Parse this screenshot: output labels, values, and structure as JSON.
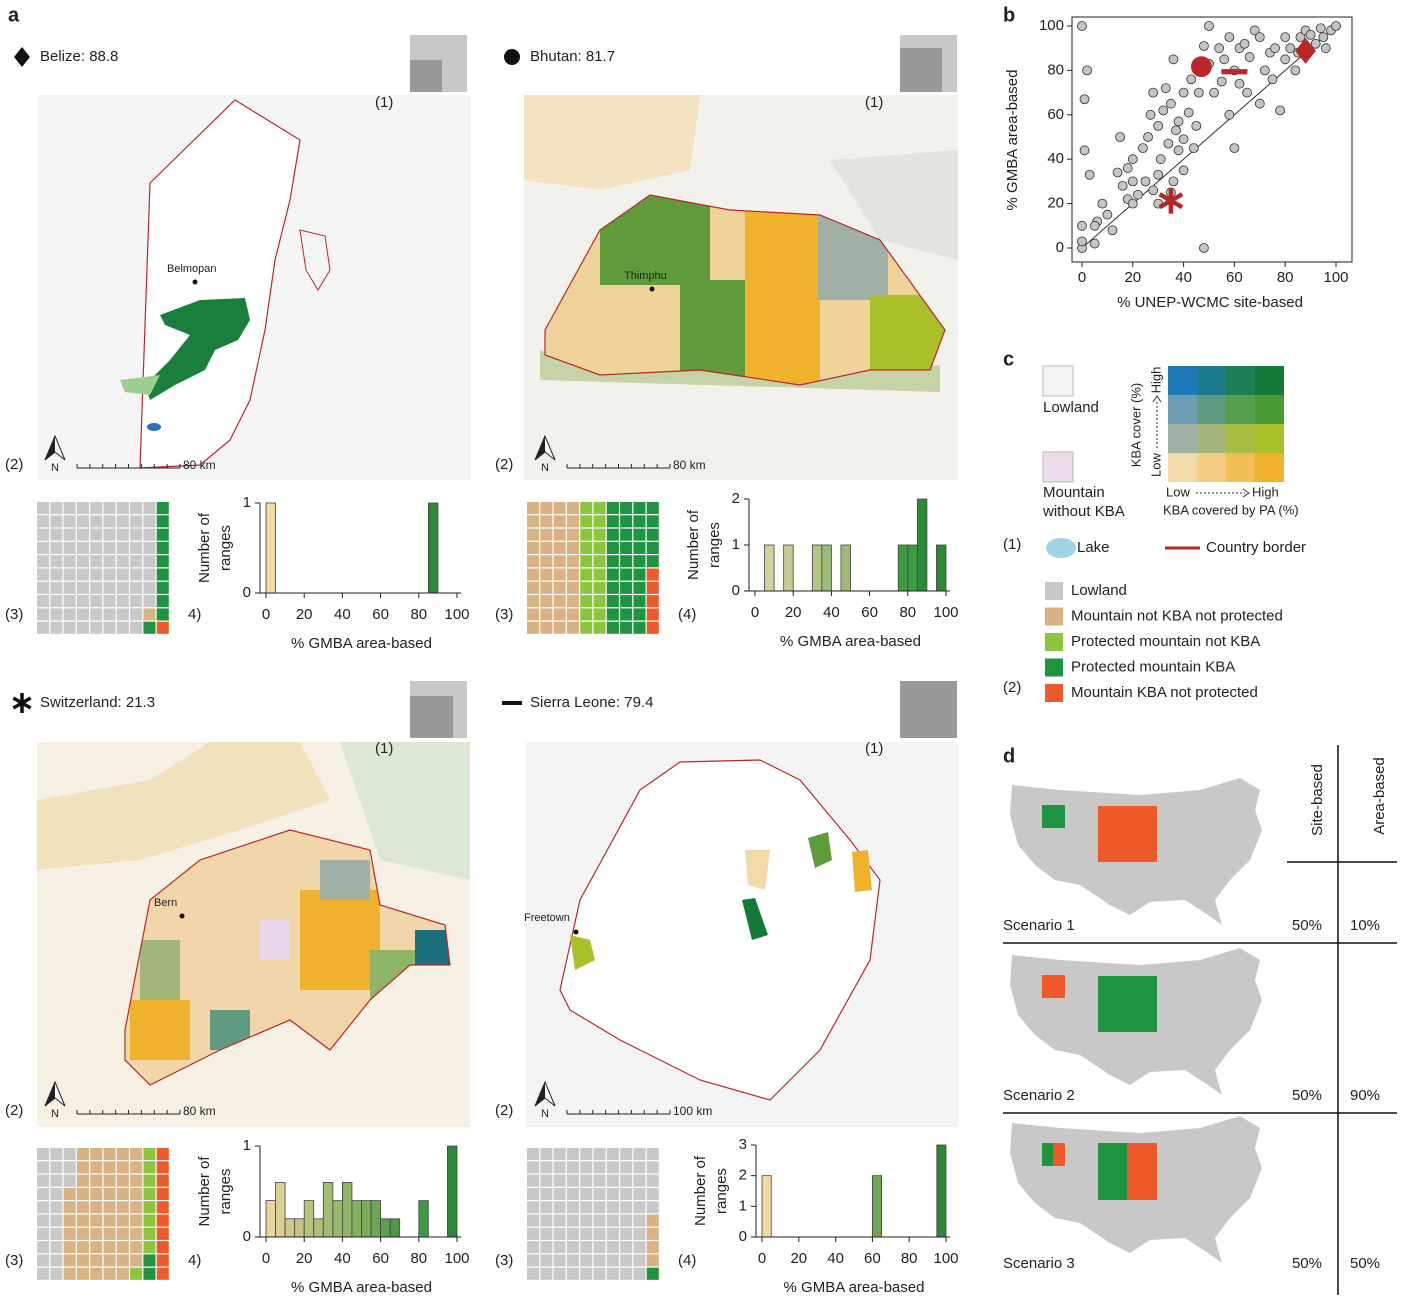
{
  "panel_labels": [
    "a",
    "b",
    "c",
    "d"
  ],
  "countries": [
    {
      "title": "Belize: 88.8",
      "city": "Belmopan",
      "scale": "80 km",
      "north": "N",
      "labels": [
        "(1)",
        "(2)",
        "(3)",
        "4)"
      ],
      "waffle": [
        88,
        1,
        0,
        10,
        1
      ]
    },
    {
      "title": "Bhutan: 81.7",
      "city": "Thimphu",
      "scale": "80 km",
      "north": "N",
      "labels": [
        "(1)",
        "(2)",
        "(3)",
        "(4)"
      ],
      "waffle": [
        0,
        40,
        20,
        35,
        5
      ]
    },
    {
      "title": "Switzerland: 21.3",
      "city": "Bern",
      "scale": "80 km",
      "north": "N",
      "labels": [
        "(1)",
        "(2)",
        "(3)",
        "4)"
      ],
      "waffle": [
        23,
        56,
        9,
        2,
        10
      ]
    },
    {
      "title": "Sierra Leone: 79.4",
      "city": "Freetown",
      "scale": "100 km",
      "north": "N",
      "labels": [
        "(1)",
        "(2)",
        "(3)",
        "(4)"
      ],
      "waffle": [
        95,
        4,
        0,
        1,
        0
      ]
    }
  ],
  "chart_data": [
    {
      "type": "histogram",
      "xlabel": "% GMBA area-based",
      "ylabel": [
        "Number of",
        "ranges"
      ],
      "bins": [
        0,
        5,
        10,
        15,
        20,
        25,
        30,
        35,
        40,
        45,
        50,
        55,
        60,
        65,
        70,
        75,
        80,
        85,
        90,
        95,
        100
      ],
      "counts": [
        1,
        0,
        0,
        0,
        0,
        0,
        0,
        0,
        0,
        0,
        0,
        0,
        0,
        0,
        0,
        0,
        0,
        1,
        0,
        0
      ],
      "colors": [
        "#f3d9a4",
        null,
        null,
        null,
        null,
        null,
        null,
        null,
        null,
        null,
        null,
        null,
        null,
        null,
        null,
        null,
        null,
        "#2a8a36",
        null,
        null
      ],
      "xlim": [
        0,
        100
      ],
      "xticks": [
        0,
        20,
        40,
        60,
        80,
        100
      ],
      "ylim": [
        0,
        1
      ],
      "yticks": [
        0,
        1
      ]
    },
    {
      "type": "histogram",
      "xlabel": "% GMBA area-based",
      "ylabel": [
        "Number of",
        "ranges"
      ],
      "bins": [
        0,
        5,
        10,
        15,
        20,
        25,
        30,
        35,
        40,
        45,
        50,
        55,
        60,
        65,
        70,
        75,
        80,
        85,
        90,
        95,
        100
      ],
      "counts": [
        0,
        1,
        0,
        1,
        0,
        0,
        1,
        1,
        0,
        1,
        0,
        0,
        0,
        0,
        0,
        1,
        1,
        2,
        0,
        1
      ],
      "colors": [
        null,
        "#d5d09a",
        null,
        "#c9c890",
        null,
        null,
        "#b2c486",
        "#9dbb76",
        null,
        "#9dbb76",
        null,
        null,
        null,
        null,
        null,
        "#3f9a44",
        "#3f9a44",
        "#2a8a36",
        null,
        "#2a8a36"
      ],
      "xlim": [
        0,
        100
      ],
      "xticks": [
        0,
        20,
        40,
        60,
        80,
        100
      ],
      "ylim": [
        0,
        2
      ],
      "yticks": [
        0,
        1,
        2
      ]
    },
    {
      "type": "histogram",
      "xlabel": "% GMBA area-based",
      "ylabel": [
        "Number of",
        "ranges"
      ],
      "bins": [
        0,
        5,
        10,
        15,
        20,
        25,
        30,
        35,
        40,
        45,
        50,
        55,
        60,
        65,
        70,
        75,
        80,
        85,
        90,
        95,
        100
      ],
      "counts": [
        0.4,
        0.6,
        0.2,
        0.2,
        0.4,
        0.2,
        0.6,
        0.4,
        0.6,
        0.4,
        0.4,
        0.4,
        0.2,
        0.2,
        0,
        0,
        0.4,
        0,
        0,
        1
      ],
      "colors": [
        "#e6d49a",
        "#d9cf92",
        "#ccc98a",
        "#c2c585",
        "#b8c27f",
        "#adbf79",
        "#a3bc73",
        "#99b86d",
        "#8fb467",
        "#85b061",
        "#7aab5b",
        "#6fa655",
        "#5f9f50",
        "#4f984a",
        null,
        null,
        "#3f9a44",
        null,
        null,
        "#2a8a36"
      ],
      "xlim": [
        0,
        100
      ],
      "xticks": [
        0,
        20,
        40,
        60,
        80,
        100
      ],
      "ylim": [
        0,
        1
      ],
      "yticks": [
        0,
        1
      ]
    },
    {
      "type": "histogram",
      "xlabel": "% GMBA area-based",
      "ylabel": [
        "Number of",
        "ranges"
      ],
      "bins": [
        0,
        5,
        10,
        15,
        20,
        25,
        30,
        35,
        40,
        45,
        50,
        55,
        60,
        65,
        70,
        75,
        80,
        85,
        90,
        95,
        100
      ],
      "counts": [
        2,
        0,
        0,
        0,
        0,
        0,
        0,
        0,
        0,
        0,
        0,
        0,
        2,
        0,
        0,
        0,
        0,
        0,
        0,
        3
      ],
      "colors": [
        "#f3d9a4",
        null,
        null,
        null,
        null,
        null,
        null,
        null,
        null,
        null,
        null,
        null,
        "#6fa655",
        null,
        null,
        null,
        null,
        null,
        null,
        "#2a8a36"
      ],
      "xlim": [
        0,
        100
      ],
      "xticks": [
        0,
        20,
        40,
        60,
        80,
        100
      ],
      "ylim": [
        0,
        3
      ],
      "yticks": [
        0,
        1,
        2,
        3
      ]
    },
    {
      "type": "scatter",
      "xlabel": "% UNEP-WCMC site-based",
      "ylabel": "% GMBA area-based",
      "color": "#c4c4c4",
      "x": [
        0,
        0,
        0,
        1,
        1,
        2,
        0,
        3,
        5,
        6,
        8,
        10,
        12,
        14,
        15,
        16,
        18,
        18,
        20,
        20,
        22,
        24,
        25,
        26,
        27,
        28,
        28,
        30,
        30,
        31,
        32,
        33,
        34,
        35,
        35,
        36,
        36,
        37,
        38,
        38,
        40,
        40,
        42,
        43,
        44,
        45,
        46,
        48,
        50,
        50,
        52,
        54,
        55,
        56,
        58,
        58,
        60,
        62,
        62,
        64,
        65,
        66,
        68,
        70,
        70,
        72,
        74,
        75,
        76,
        78,
        80,
        80,
        82,
        84,
        85,
        86,
        88,
        90,
        92,
        94,
        95,
        96,
        98,
        100,
        48,
        5,
        30,
        60,
        40,
        20
      ],
      "y": [
        0,
        3,
        100,
        44,
        67,
        80,
        10,
        33,
        2,
        12,
        20,
        15,
        8,
        34,
        50,
        28,
        22,
        36,
        20,
        40,
        24,
        45,
        30,
        50,
        60,
        26,
        70,
        33,
        55,
        40,
        62,
        72,
        47,
        25,
        65,
        85,
        30,
        53,
        44,
        57,
        49,
        70,
        61,
        76,
        45,
        55,
        70,
        91,
        83,
        100,
        70,
        90,
        75,
        85,
        60,
        95,
        80,
        74,
        90,
        92,
        70,
        86,
        98,
        65,
        95,
        80,
        88,
        76,
        90,
        62,
        85,
        95,
        90,
        80,
        88,
        95,
        98,
        96,
        92,
        99,
        95,
        90,
        98,
        100,
        0,
        10,
        20,
        45,
        35,
        30
      ],
      "markers": {
        "x": [
          88,
          47,
          35,
          60
        ],
        "y": [
          88.8,
          81.7,
          21.3,
          79.4
        ],
        "shape": [
          "diamond",
          "circle",
          "star",
          "dash"
        ],
        "color": "#b8282b"
      },
      "diagonal": true,
      "xlim": [
        0,
        100
      ],
      "xticks": [
        0,
        20,
        40,
        60,
        80,
        100
      ],
      "ylim": [
        0,
        100
      ],
      "yticks": [
        0,
        20,
        40,
        60,
        80,
        100
      ]
    }
  ],
  "legend": {
    "lowland_box": "Lowland",
    "mountain_box": [
      "Mountain",
      "without KBA"
    ],
    "kba_cover": "KBA cover (%)",
    "y_low": "Low",
    "y_high": "High",
    "x_low": "Low",
    "x_high": "High",
    "kba_pa": "KBA covered by PA (%)",
    "bivariate_colors": [
      [
        "#1f78b8",
        "#1b7a8c",
        "#1d7f55",
        "#137b37"
      ],
      [
        "#6d9db3",
        "#5e9a80",
        "#559e4d",
        "#4a9a34"
      ],
      [
        "#a0b0a4",
        "#a2b67c",
        "#a8bd44",
        "#a9c02a"
      ],
      [
        "#f1d9a8",
        "#f2cc80",
        "#f2bf55",
        "#f0b12c"
      ]
    ],
    "group1": "(1)",
    "lake": "Lake",
    "border": "Country border",
    "group2": "(2)",
    "categories": [
      {
        "name": "Lowland",
        "color": "#c8c8c8"
      },
      {
        "name": "Mountain not KBA not protected",
        "color": "#d9b384"
      },
      {
        "name": "Protected mountain not KBA",
        "color": "#8cc63f"
      },
      {
        "name": "Protected mountain KBA",
        "color": "#1e9340"
      },
      {
        "name": "Mountain KBA not protected",
        "color": "#ef5a2a"
      }
    ]
  },
  "scenarios": {
    "headers": [
      "Site-based",
      "Area-based"
    ],
    "rows": [
      {
        "name": "Scenario 1",
        "site": "50%",
        "area": "10%"
      },
      {
        "name": "Scenario 2",
        "site": "50%",
        "area": "90%"
      },
      {
        "name": "Scenario 3",
        "site": "50%",
        "area": "50%"
      }
    ]
  }
}
